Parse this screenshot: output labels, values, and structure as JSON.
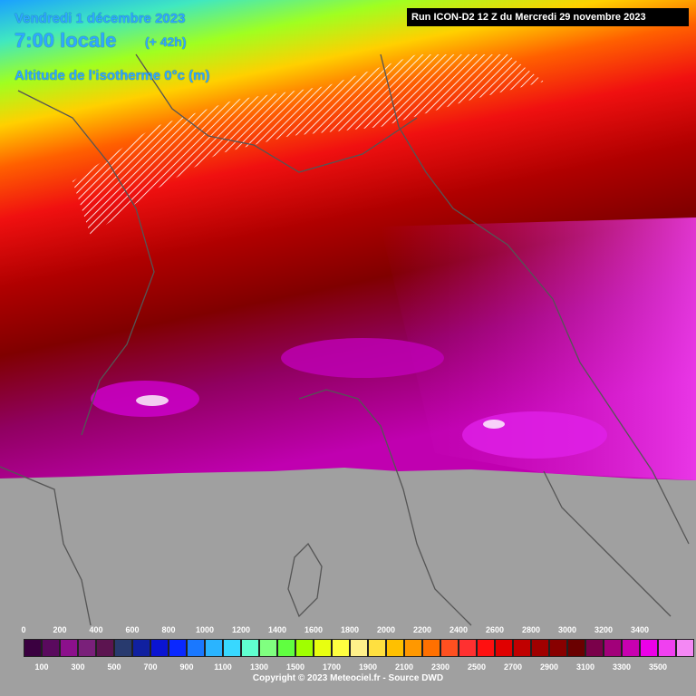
{
  "header": {
    "date": "Vendredi 1 décembre 2023",
    "time": "7:00 locale",
    "lead": "(+ 42h)",
    "parameter": "Altitude de l'isotherme 0°c (m)",
    "run": "Run ICON-D2 12 Z du Mercredi 29 novembre 2023"
  },
  "legend": {
    "top_labels": [
      "0",
      "200",
      "400",
      "600",
      "800",
      "1000",
      "1200",
      "1400",
      "1600",
      "1800",
      "2000",
      "2200",
      "2400",
      "2600",
      "2800",
      "3000",
      "3200",
      "3400"
    ],
    "bottom_labels": [
      "100",
      "300",
      "500",
      "700",
      "900",
      "1100",
      "1300",
      "1500",
      "1700",
      "1900",
      "2100",
      "2300",
      "2500",
      "2700",
      "2900",
      "3100",
      "3300",
      "3500"
    ],
    "colors": [
      "#3a0040",
      "#5a0a5e",
      "#8c108c",
      "#7a207a",
      "#5c1450",
      "#283a6e",
      "#1020a0",
      "#0a14d2",
      "#0a28ff",
      "#1a78ff",
      "#2ab4ff",
      "#38d8ff",
      "#60ffd0",
      "#80ff80",
      "#60ff40",
      "#a0ff00",
      "#e8ff10",
      "#ffff40",
      "#fff08a",
      "#ffe040",
      "#ffc000",
      "#ff9800",
      "#ff7000",
      "#ff5020",
      "#ff3030",
      "#ff1010",
      "#e00000",
      "#c00000",
      "#a00000",
      "#880000",
      "#6a0000",
      "#7a004a",
      "#a2007a",
      "#c800b0",
      "#ec00e8",
      "#f040f0",
      "#f488f4"
    ]
  },
  "copyright": "Copyright © 2023 Meteociel.fr - Source DWD"
}
